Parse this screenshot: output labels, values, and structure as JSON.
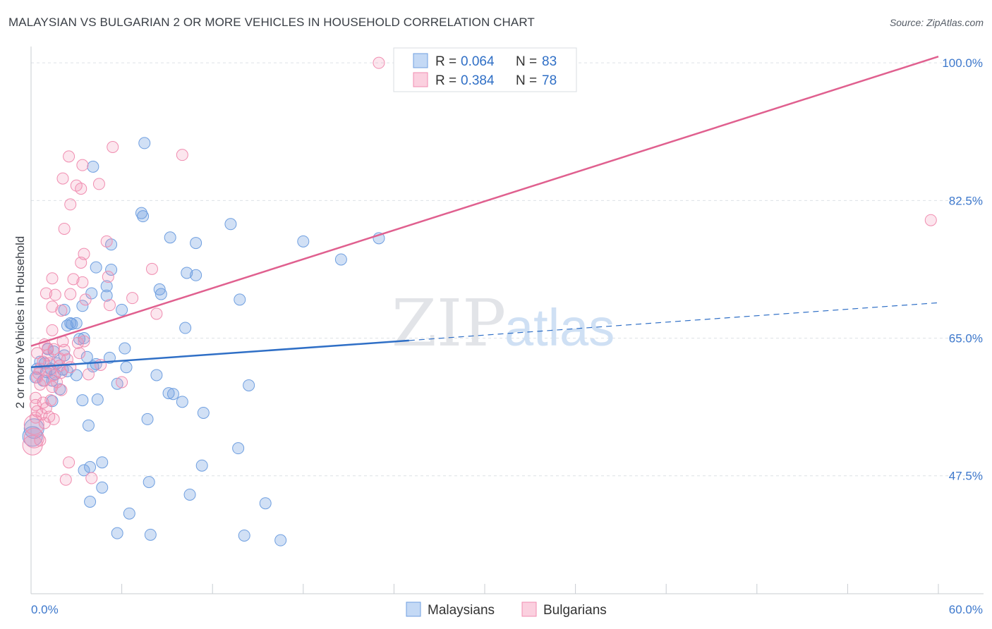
{
  "title": "MALAYSIAN VS BULGARIAN 2 OR MORE VEHICLES IN HOUSEHOLD CORRELATION CHART",
  "source": "Source: ZipAtlas.com",
  "watermark": {
    "zip": "ZIP",
    "atlas": "atlas"
  },
  "legend_top": [
    {
      "r_label": "R =",
      "r_value": "0.064",
      "n_label": "N =",
      "n_value": "83",
      "color": "#6f9fe0"
    },
    {
      "r_label": "R =",
      "r_value": "0.384",
      "n_label": "N =",
      "n_value": "78",
      "color": "#f08db0"
    }
  ],
  "legend_bottom": [
    {
      "label": "Malaysians",
      "color": "#6f9fe0"
    },
    {
      "label": "Bulgarians",
      "color": "#f08db0"
    }
  ],
  "chart_data": {
    "type": "scatter",
    "title": "MALAYSIAN VS BULGARIAN 2 OR MORE VEHICLES IN HOUSEHOLD CORRELATION CHART",
    "xlabel": "",
    "ylabel": "2 or more Vehicles in Household",
    "xlim": [
      0,
      60
    ],
    "ylim": [
      32.5,
      101
    ],
    "x_tick_labels": [
      {
        "value": 0,
        "label": "0.0%"
      },
      {
        "value": 60,
        "label": "60.0%"
      }
    ],
    "y_tick_labels": [
      {
        "value": 47.5,
        "label": "47.5%"
      },
      {
        "value": 65.0,
        "label": "65.0%"
      },
      {
        "value": 82.5,
        "label": "82.5%"
      },
      {
        "value": 100.0,
        "label": "100.0%"
      }
    ],
    "grid": true,
    "legend_position": "top-center",
    "series": [
      {
        "name": "Malaysians",
        "color": "#6f9fe0",
        "line_color": "#2f6fc6",
        "trend": {
          "x0": 0,
          "y0": 61.3,
          "x1": 25,
          "y1": 64.7,
          "x_dash_end": 60,
          "y_dash_end": 69.5
        },
        "points": [
          [
            7.5,
            89.8
          ],
          [
            4.1,
            86.8
          ],
          [
            7.3,
            80.9
          ],
          [
            7.4,
            80.5
          ],
          [
            13.2,
            79.5
          ],
          [
            9.2,
            77.8
          ],
          [
            10.9,
            77.1
          ],
          [
            18.0,
            77.3
          ],
          [
            23.0,
            77.7
          ],
          [
            5.3,
            76.9
          ],
          [
            20.5,
            75.0
          ],
          [
            4.3,
            74.0
          ],
          [
            5.3,
            73.7
          ],
          [
            10.3,
            73.3
          ],
          [
            10.9,
            73.0
          ],
          [
            5.0,
            71.6
          ],
          [
            8.5,
            71.2
          ],
          [
            4.0,
            70.7
          ],
          [
            8.6,
            70.6
          ],
          [
            5.0,
            70.4
          ],
          [
            13.8,
            69.9
          ],
          [
            3.4,
            69.1
          ],
          [
            6.0,
            68.6
          ],
          [
            2.2,
            68.6
          ],
          [
            2.6,
            66.9
          ],
          [
            2.7,
            66.8
          ],
          [
            3.0,
            66.9
          ],
          [
            2.4,
            66.6
          ],
          [
            10.2,
            66.3
          ],
          [
            3.5,
            65.0
          ],
          [
            3.2,
            64.9
          ],
          [
            6.2,
            63.7
          ],
          [
            1.1,
            63.6
          ],
          [
            1.5,
            63.3
          ],
          [
            2.2,
            62.8
          ],
          [
            3.7,
            62.6
          ],
          [
            5.2,
            62.5
          ],
          [
            0.6,
            62.0
          ],
          [
            0.9,
            61.8
          ],
          [
            1.7,
            61.8
          ],
          [
            4.3,
            61.7
          ],
          [
            4.1,
            61.4
          ],
          [
            6.3,
            61.3
          ],
          [
            0.4,
            61.1
          ],
          [
            1.3,
            61.1
          ],
          [
            2.1,
            61.0
          ],
          [
            2.4,
            60.8
          ],
          [
            1.0,
            60.7
          ],
          [
            1.6,
            60.4
          ],
          [
            3.0,
            60.3
          ],
          [
            8.3,
            60.3
          ],
          [
            0.3,
            60.0
          ],
          [
            0.8,
            59.6
          ],
          [
            1.4,
            59.6
          ],
          [
            5.7,
            59.2
          ],
          [
            14.4,
            59.0
          ],
          [
            1.9,
            58.5
          ],
          [
            9.1,
            58.0
          ],
          [
            9.4,
            57.9
          ],
          [
            3.4,
            57.1
          ],
          [
            4.4,
            57.2
          ],
          [
            1.4,
            57.0
          ],
          [
            10.0,
            56.9
          ],
          [
            11.4,
            55.5
          ],
          [
            3.8,
            53.9
          ],
          [
            7.7,
            54.7
          ],
          [
            0.2,
            53.5
          ],
          [
            13.7,
            51.0
          ],
          [
            4.7,
            49.2
          ],
          [
            11.3,
            48.8
          ],
          [
            3.9,
            48.6
          ],
          [
            3.5,
            48.2
          ],
          [
            7.8,
            46.7
          ],
          [
            4.7,
            46.0
          ],
          [
            10.5,
            45.1
          ],
          [
            3.9,
            44.2
          ],
          [
            15.5,
            44.0
          ],
          [
            6.5,
            42.7
          ],
          [
            5.7,
            40.2
          ],
          [
            7.9,
            40.0
          ],
          [
            14.1,
            39.9
          ],
          [
            16.5,
            39.3
          ],
          [
            0.1,
            52.5
          ]
        ]
      },
      {
        "name": "Bulgarians",
        "color": "#f08db0",
        "line_color": "#e0608f",
        "trend": {
          "x0": 0,
          "y0": 64.0,
          "x1": 60,
          "y1": 100.8
        },
        "points": [
          [
            23.0,
            100.0
          ],
          [
            5.4,
            89.3
          ],
          [
            2.5,
            88.1
          ],
          [
            10.0,
            88.3
          ],
          [
            3.4,
            87.0
          ],
          [
            2.1,
            85.3
          ],
          [
            3.0,
            84.4
          ],
          [
            3.3,
            84.0
          ],
          [
            4.5,
            84.6
          ],
          [
            2.6,
            82.0
          ],
          [
            59.5,
            80.0
          ],
          [
            2.2,
            78.9
          ],
          [
            5.0,
            77.3
          ],
          [
            3.5,
            75.7
          ],
          [
            3.3,
            74.6
          ],
          [
            8.0,
            73.8
          ],
          [
            5.1,
            72.8
          ],
          [
            1.4,
            72.6
          ],
          [
            2.8,
            72.5
          ],
          [
            3.4,
            72.1
          ],
          [
            1.0,
            70.7
          ],
          [
            1.6,
            70.5
          ],
          [
            2.6,
            70.6
          ],
          [
            6.7,
            70.1
          ],
          [
            3.6,
            69.9
          ],
          [
            1.4,
            69.0
          ],
          [
            5.2,
            69.2
          ],
          [
            2.0,
            68.5
          ],
          [
            8.3,
            68.1
          ],
          [
            1.4,
            66.0
          ],
          [
            2.1,
            64.6
          ],
          [
            3.1,
            64.4
          ],
          [
            3.5,
            64.6
          ],
          [
            0.9,
            64.2
          ],
          [
            1.1,
            63.7
          ],
          [
            1.5,
            63.6
          ],
          [
            2.2,
            63.5
          ],
          [
            3.2,
            63.1
          ],
          [
            0.4,
            63.1
          ],
          [
            1.1,
            62.8
          ],
          [
            1.9,
            62.4
          ],
          [
            2.4,
            62.3
          ],
          [
            0.8,
            62.0
          ],
          [
            1.2,
            61.8
          ],
          [
            1.9,
            61.5
          ],
          [
            2.6,
            61.3
          ],
          [
            4.6,
            61.6
          ],
          [
            0.6,
            61.1
          ],
          [
            1.3,
            60.9
          ],
          [
            2.0,
            60.6
          ],
          [
            0.5,
            60.5
          ],
          [
            1.5,
            60.3
          ],
          [
            3.8,
            60.4
          ],
          [
            0.4,
            60.0
          ],
          [
            0.9,
            59.6
          ],
          [
            1.7,
            59.4
          ],
          [
            6.0,
            59.4
          ],
          [
            0.6,
            59.1
          ],
          [
            1.4,
            58.8
          ],
          [
            2.0,
            58.4
          ],
          [
            0.3,
            57.4
          ],
          [
            1.3,
            57.1
          ],
          [
            0.8,
            56.8
          ],
          [
            0.3,
            56.5
          ],
          [
            1.0,
            56.1
          ],
          [
            0.4,
            55.7
          ],
          [
            0.7,
            55.3
          ],
          [
            1.2,
            55.0
          ],
          [
            0.3,
            54.9
          ],
          [
            1.5,
            54.7
          ],
          [
            0.9,
            54.2
          ],
          [
            0.2,
            54.0
          ],
          [
            2.5,
            49.2
          ],
          [
            2.3,
            47.0
          ],
          [
            4.0,
            47.2
          ],
          [
            0.1,
            51.4
          ],
          [
            0.2,
            52.3
          ],
          [
            0.6,
            52.0
          ]
        ]
      }
    ]
  }
}
